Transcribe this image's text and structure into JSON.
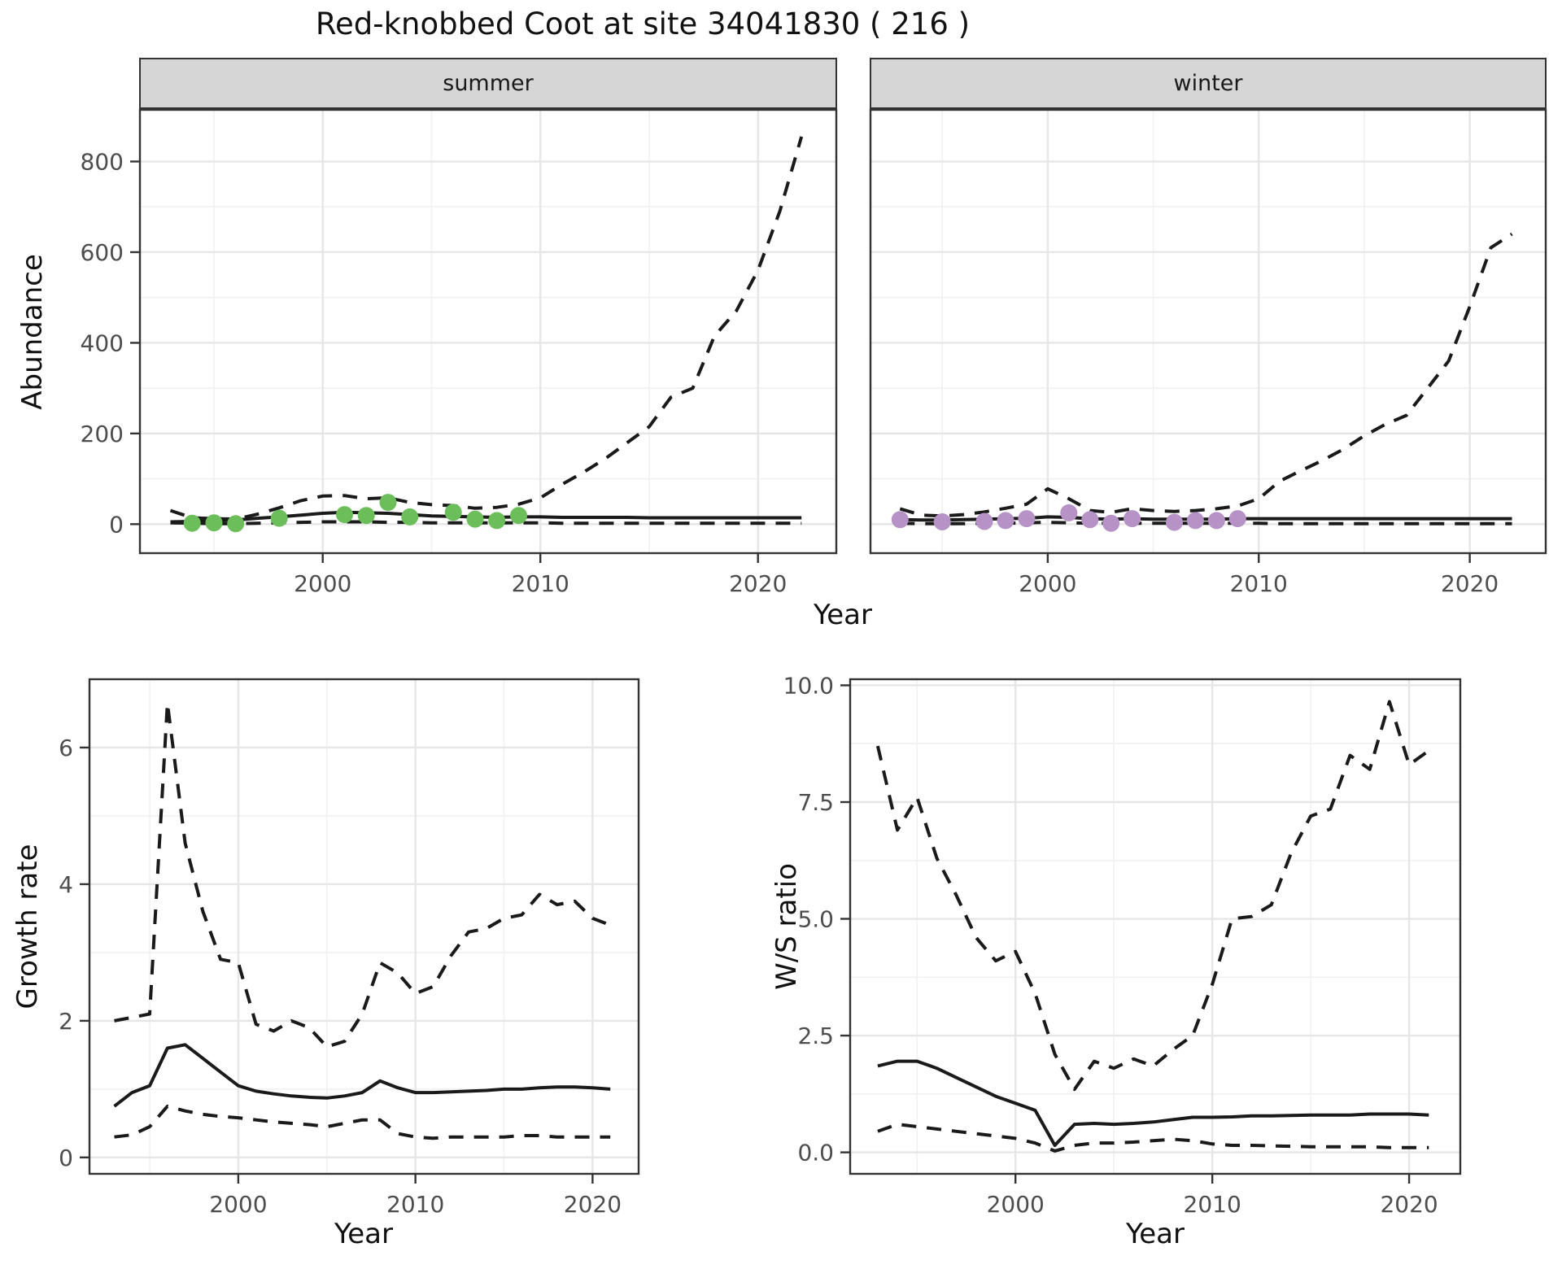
{
  "title": "Red-knobbed Coot at site 34041830 ( 216 )",
  "axes": {
    "abundance": "Abundance",
    "year": "Year",
    "growth_rate": "Growth rate",
    "ws_ratio": "W/S ratio"
  },
  "colors": {
    "summer_point": "#6cbe5b",
    "winter_point": "#b692c6",
    "line": "#1a1a1a",
    "strip_bg": "#d6d6d6",
    "strip_border": "#333333",
    "panel_border": "#333333",
    "grid_major": "#e6e6e6",
    "grid_minor": "#f1f1f1",
    "axis_text": "#4d4d4d",
    "tick_mark": "#333333"
  },
  "chart_data": [
    {
      "id": "abundance_summer",
      "type": "line",
      "facet": "summer",
      "ylabel": "Abundance",
      "xlabel": "Year",
      "xlim": [
        1991.6,
        2023.6
      ],
      "ylim": [
        -64,
        914
      ],
      "xticks": [
        {
          "v": 2000,
          "l": "2000"
        },
        {
          "v": 2010,
          "l": "2010"
        },
        {
          "v": 2020,
          "l": "2020"
        }
      ],
      "yticks": [
        {
          "v": 0,
          "l": "0"
        },
        {
          "v": 200,
          "l": "200"
        },
        {
          "v": 400,
          "l": "400"
        },
        {
          "v": 600,
          "l": "600"
        },
        {
          "v": 800,
          "l": "800"
        }
      ],
      "xminor": [
        1995,
        2005,
        2015
      ],
      "yminor": [
        100,
        300,
        500,
        700
      ],
      "has_y_labels": true,
      "x": [
        1993,
        1994,
        1995,
        1996,
        1997,
        1998,
        1999,
        2000,
        2001,
        2002,
        2003,
        2004,
        2005,
        2006,
        2007,
        2008,
        2009,
        2010,
        2011,
        2012,
        2013,
        2014,
        2015,
        2016,
        2017,
        2018,
        2019,
        2020,
        2021,
        2022
      ],
      "series": [
        {
          "name": "upper_ci",
          "style": "dashed",
          "values": [
            30,
            14,
            12,
            11,
            22,
            36,
            52,
            62,
            63,
            56,
            58,
            48,
            43,
            41,
            35,
            37,
            44,
            58,
            88,
            115,
            145,
            180,
            215,
            280,
            300,
            415,
            470,
            560,
            690,
            855
          ]
        },
        {
          "name": "median",
          "style": "solid",
          "values": [
            5,
            6,
            7,
            9,
            13,
            16,
            20,
            24,
            26,
            25,
            24,
            21,
            18,
            17,
            16,
            15,
            16,
            16,
            15,
            15,
            15,
            15,
            14,
            14,
            14,
            14,
            14,
            14,
            14,
            14
          ]
        },
        {
          "name": "lower_ci",
          "style": "dashed",
          "values": [
            3,
            2,
            1,
            1,
            2,
            3,
            4,
            5,
            5,
            5,
            4,
            4,
            3,
            3,
            3,
            3,
            3,
            3,
            2,
            2,
            2,
            2,
            2,
            2,
            2,
            2,
            2,
            2,
            2,
            2
          ]
        }
      ],
      "observations": {
        "color_key": "summer_point",
        "data": [
          [
            1994,
            2
          ],
          [
            1995,
            3
          ],
          [
            1996,
            1
          ],
          [
            1998,
            13
          ],
          [
            2001,
            21
          ],
          [
            2002,
            19
          ],
          [
            2003,
            48
          ],
          [
            2004,
            16
          ],
          [
            2006,
            26
          ],
          [
            2007,
            11
          ],
          [
            2008,
            8
          ],
          [
            2009,
            19
          ]
        ]
      }
    },
    {
      "id": "abundance_winter",
      "type": "line",
      "facet": "winter",
      "ylabel": "Abundance",
      "xlabel": "Year",
      "xlim": [
        1991.6,
        2023.6
      ],
      "ylim": [
        -64,
        914
      ],
      "xticks": [
        {
          "v": 2000,
          "l": "2000"
        },
        {
          "v": 2010,
          "l": "2010"
        },
        {
          "v": 2020,
          "l": "2020"
        }
      ],
      "yticks": [
        {
          "v": 0,
          "l": "0"
        },
        {
          "v": 200,
          "l": "200"
        },
        {
          "v": 400,
          "l": "400"
        },
        {
          "v": 600,
          "l": "600"
        },
        {
          "v": 800,
          "l": "800"
        }
      ],
      "xminor": [
        1995,
        2005,
        2015
      ],
      "yminor": [
        100,
        300,
        500,
        700
      ],
      "has_y_labels": false,
      "x": [
        1993,
        1994,
        1995,
        1996,
        1997,
        1998,
        1999,
        2000,
        2001,
        2002,
        2003,
        2004,
        2005,
        2006,
        2007,
        2008,
        2009,
        2010,
        2011,
        2012,
        2013,
        2014,
        2015,
        2016,
        2017,
        2018,
        2019,
        2020,
        2021,
        2022
      ],
      "series": [
        {
          "name": "upper_ci",
          "style": "dashed",
          "values": [
            34,
            20,
            18,
            21,
            27,
            35,
            44,
            78,
            56,
            30,
            26,
            34,
            30,
            28,
            30,
            34,
            40,
            56,
            95,
            118,
            140,
            165,
            195,
            220,
            240,
            300,
            360,
            480,
            610,
            640
          ]
        },
        {
          "name": "median",
          "style": "solid",
          "values": [
            10,
            9,
            9,
            10,
            11,
            12,
            13,
            16,
            15,
            12,
            11,
            12,
            11,
            11,
            11,
            11,
            12,
            12,
            12,
            12,
            12,
            12,
            12,
            12,
            12,
            12,
            12,
            12,
            12,
            12
          ]
        },
        {
          "name": "lower_ci",
          "style": "dashed",
          "values": [
            2,
            1,
            1,
            1,
            2,
            2,
            3,
            4,
            3,
            2,
            2,
            2,
            2,
            2,
            2,
            2,
            2,
            2,
            1,
            1,
            1,
            1,
            1,
            1,
            1,
            1,
            1,
            1,
            1,
            1
          ]
        }
      ],
      "observations": {
        "color_key": "winter_point",
        "data": [
          [
            1993,
            10
          ],
          [
            1995,
            5
          ],
          [
            1997,
            6
          ],
          [
            1998,
            8
          ],
          [
            1999,
            12
          ],
          [
            2001,
            25
          ],
          [
            2002,
            10
          ],
          [
            2003,
            2
          ],
          [
            2004,
            12
          ],
          [
            2006,
            4
          ],
          [
            2007,
            8
          ],
          [
            2008,
            8
          ],
          [
            2009,
            12
          ]
        ]
      }
    },
    {
      "id": "growth_rate",
      "type": "line",
      "facet": null,
      "ylabel": "Growth rate",
      "xlabel": "Year",
      "xlim": [
        1991.6,
        2022.6
      ],
      "ylim": [
        -0.24,
        7.0
      ],
      "xticks": [
        {
          "v": 2000,
          "l": "2000"
        },
        {
          "v": 2010,
          "l": "2010"
        },
        {
          "v": 2020,
          "l": "2020"
        }
      ],
      "yticks": [
        {
          "v": 0,
          "l": "0"
        },
        {
          "v": 2,
          "l": "2"
        },
        {
          "v": 4,
          "l": "4"
        },
        {
          "v": 6,
          "l": "6"
        }
      ],
      "xminor": [
        1995,
        2005,
        2015
      ],
      "yminor": [
        1,
        3,
        5,
        7
      ],
      "has_y_labels": true,
      "x": [
        1993,
        1994,
        1995,
        1996,
        1997,
        1998,
        1999,
        2000,
        2001,
        2002,
        2003,
        2004,
        2005,
        2006,
        2007,
        2008,
        2009,
        2010,
        2011,
        2012,
        2013,
        2014,
        2015,
        2016,
        2017,
        2018,
        2019,
        2020,
        2021
      ],
      "series": [
        {
          "name": "upper_ci",
          "style": "dashed",
          "values": [
            2.0,
            2.05,
            2.1,
            6.65,
            4.6,
            3.6,
            2.9,
            2.85,
            1.95,
            1.85,
            2.0,
            1.9,
            1.62,
            1.7,
            2.1,
            2.85,
            2.7,
            2.4,
            2.5,
            2.95,
            3.3,
            3.35,
            3.5,
            3.55,
            3.85,
            3.7,
            3.75,
            3.5,
            3.4
          ]
        },
        {
          "name": "median",
          "style": "solid",
          "values": [
            0.75,
            0.95,
            1.05,
            1.6,
            1.65,
            1.45,
            1.25,
            1.05,
            0.97,
            0.93,
            0.9,
            0.88,
            0.87,
            0.9,
            0.95,
            1.12,
            1.02,
            0.95,
            0.95,
            0.96,
            0.97,
            0.98,
            1.0,
            1.0,
            1.02,
            1.03,
            1.03,
            1.02,
            1.0
          ]
        },
        {
          "name": "lower_ci",
          "style": "dashed",
          "values": [
            0.3,
            0.33,
            0.45,
            0.75,
            0.68,
            0.63,
            0.6,
            0.58,
            0.55,
            0.52,
            0.5,
            0.48,
            0.45,
            0.5,
            0.55,
            0.55,
            0.35,
            0.3,
            0.28,
            0.3,
            0.3,
            0.3,
            0.3,
            0.32,
            0.32,
            0.3,
            0.3,
            0.3,
            0.3
          ]
        }
      ],
      "observations": null
    },
    {
      "id": "ws_ratio",
      "type": "line",
      "facet": null,
      "ylabel": "W/S ratio",
      "xlabel": "Year",
      "xlim": [
        1991.6,
        2022.6
      ],
      "ylim": [
        -0.46,
        10.13
      ],
      "xticks": [
        {
          "v": 2000,
          "l": "2000"
        },
        {
          "v": 2010,
          "l": "2010"
        },
        {
          "v": 2020,
          "l": "2020"
        }
      ],
      "yticks": [
        {
          "v": 0,
          "l": "0.0"
        },
        {
          "v": 2.5,
          "l": "2.5"
        },
        {
          "v": 5,
          "l": "5.0"
        },
        {
          "v": 7.5,
          "l": "7.5"
        },
        {
          "v": 10,
          "l": "10.0"
        }
      ],
      "xminor": [
        1995,
        2005,
        2015
      ],
      "yminor": [
        1.25,
        3.75,
        6.25,
        8.75
      ],
      "has_y_labels": true,
      "x": [
        1993,
        1994,
        1995,
        1996,
        1997,
        1998,
        1999,
        2000,
        2001,
        2002,
        2003,
        2004,
        2005,
        2006,
        2007,
        2008,
        2009,
        2010,
        2011,
        2012,
        2013,
        2014,
        2015,
        2016,
        2017,
        2018,
        2019,
        2020,
        2021
      ],
      "series": [
        {
          "name": "upper_ci",
          "style": "dashed",
          "values": [
            8.7,
            6.9,
            7.6,
            6.3,
            5.5,
            4.6,
            4.1,
            4.3,
            3.4,
            2.1,
            1.35,
            1.95,
            1.8,
            2.0,
            1.85,
            2.2,
            2.5,
            3.6,
            5.0,
            5.05,
            5.3,
            6.4,
            7.2,
            7.35,
            8.5,
            8.2,
            9.65,
            8.3,
            8.6
          ]
        },
        {
          "name": "median",
          "style": "solid",
          "values": [
            1.85,
            1.95,
            1.95,
            1.8,
            1.6,
            1.4,
            1.2,
            1.05,
            0.9,
            0.15,
            0.6,
            0.62,
            0.6,
            0.62,
            0.65,
            0.7,
            0.75,
            0.75,
            0.76,
            0.78,
            0.78,
            0.79,
            0.8,
            0.8,
            0.8,
            0.82,
            0.82,
            0.82,
            0.8
          ]
        },
        {
          "name": "lower_ci",
          "style": "dashed",
          "values": [
            0.45,
            0.6,
            0.55,
            0.5,
            0.45,
            0.4,
            0.35,
            0.3,
            0.2,
            0.03,
            0.15,
            0.2,
            0.2,
            0.22,
            0.25,
            0.28,
            0.25,
            0.18,
            0.15,
            0.15,
            0.14,
            0.13,
            0.12,
            0.12,
            0.12,
            0.12,
            0.1,
            0.1,
            0.1
          ]
        }
      ],
      "observations": null
    }
  ]
}
